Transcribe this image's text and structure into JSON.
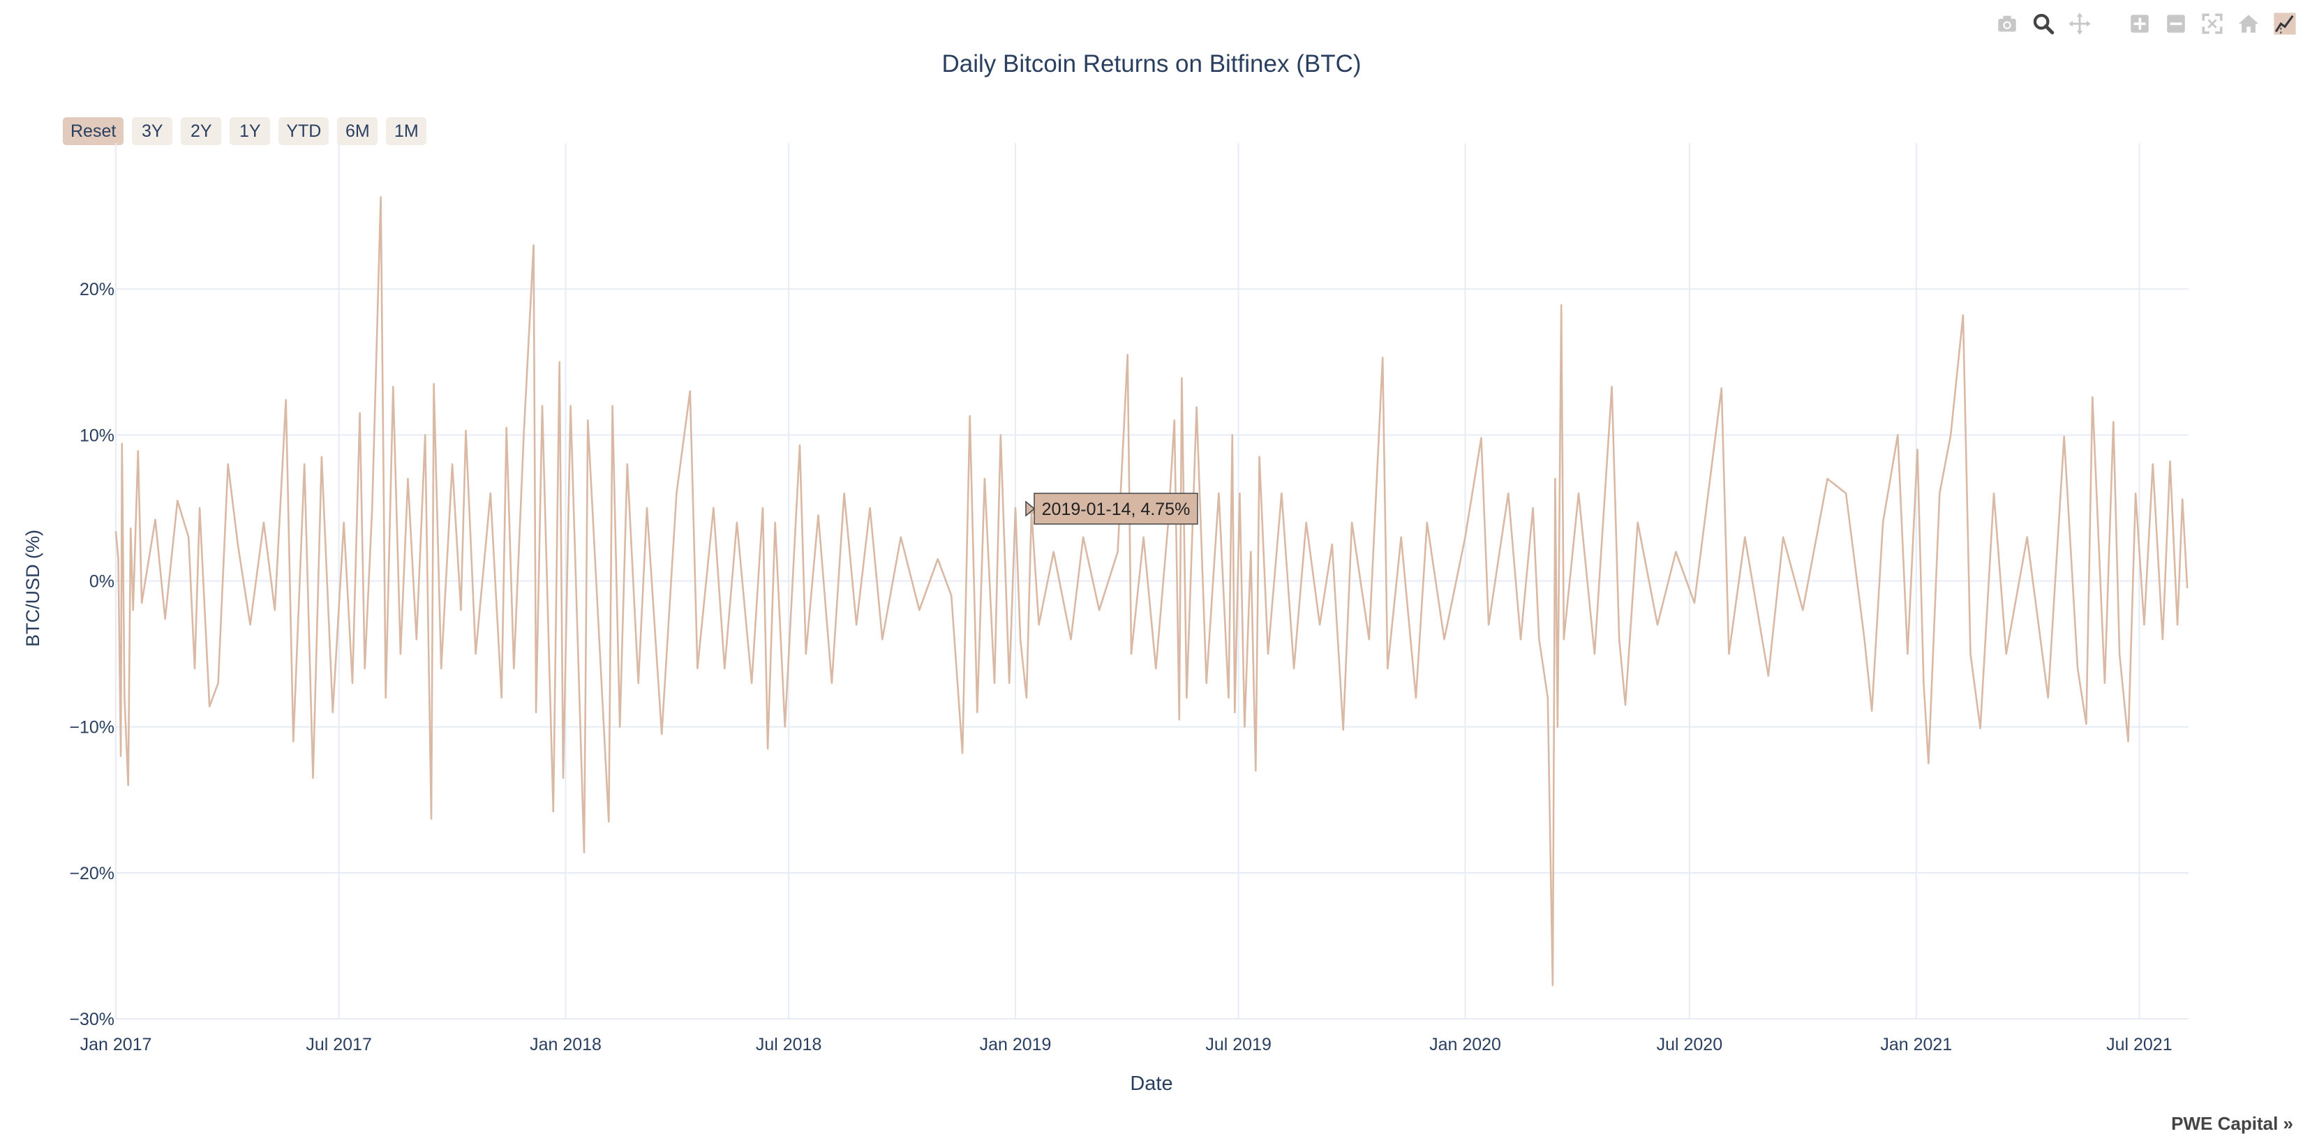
{
  "toolbar": {
    "icons": [
      "camera-icon",
      "zoom-icon",
      "pan-icon",
      "zoom-in-icon",
      "zoom-out-icon",
      "autoscale-icon",
      "reset-axes-icon",
      "spikelines-icon"
    ]
  },
  "range_selector": {
    "buttons": [
      "Reset",
      "3Y",
      "2Y",
      "1Y",
      "YTD",
      "6M",
      "1M"
    ],
    "active": "Reset"
  },
  "tooltip": {
    "text": "2019-01-14, 4.75%",
    "x": "2019-01-14",
    "y": 4.75
  },
  "branding": {
    "label": "PWE Capital »"
  },
  "colors": {
    "line": "#d9b8a4",
    "grid": "#e5ecf6",
    "active_button": "#e2cbbd",
    "button": "#f3ede8",
    "tooltip": "#d6b7a3"
  },
  "chart_data": {
    "type": "line",
    "title": "Daily Bitcoin Returns on Bitfinex (BTC)",
    "xlabel": "Date",
    "ylabel": "BTC/USD (%)",
    "x_range": [
      "2017-01-01",
      "2021-08-10"
    ],
    "ylim": [
      -30,
      30
    ],
    "grid": true,
    "x_ticks": [
      {
        "date": "2017-01-01",
        "label": "Jan 2017"
      },
      {
        "date": "2017-07-01",
        "label": "Jul 2017"
      },
      {
        "date": "2018-01-01",
        "label": "Jan 2018"
      },
      {
        "date": "2018-07-01",
        "label": "Jul 2018"
      },
      {
        "date": "2019-01-01",
        "label": "Jan 2019"
      },
      {
        "date": "2019-07-01",
        "label": "Jul 2019"
      },
      {
        "date": "2020-01-01",
        "label": "Jan 2020"
      },
      {
        "date": "2020-07-01",
        "label": "Jul 2020"
      },
      {
        "date": "2021-01-01",
        "label": "Jan 2021"
      },
      {
        "date": "2021-07-01",
        "label": "Jul 2021"
      }
    ],
    "y_ticks": [
      {
        "value": 20,
        "label": "20%"
      },
      {
        "value": 10,
        "label": "10%"
      },
      {
        "value": 0,
        "label": "0%"
      },
      {
        "value": -10,
        "label": "−10%"
      },
      {
        "value": -20,
        "label": "−20%"
      },
      {
        "value": -30,
        "label": "−30%"
      }
    ],
    "series": [
      {
        "values": [
          [
            "2017-01-01",
            3.4
          ],
          [
            "2017-01-03",
            1.5
          ],
          [
            "2017-01-05",
            -12.0
          ],
          [
            "2017-01-06",
            9.4
          ],
          [
            "2017-01-08",
            -8.0
          ],
          [
            "2017-01-11",
            -14.0
          ],
          [
            "2017-01-13",
            3.6
          ],
          [
            "2017-01-15",
            -2.0
          ],
          [
            "2017-01-19",
            8.9
          ],
          [
            "2017-01-22",
            -1.5
          ],
          [
            "2017-02-02",
            4.2
          ],
          [
            "2017-02-10",
            -2.6
          ],
          [
            "2017-02-20",
            5.5
          ],
          [
            "2017-03-01",
            3.0
          ],
          [
            "2017-03-06",
            -6.0
          ],
          [
            "2017-03-10",
            5.0
          ],
          [
            "2017-03-18",
            -8.6
          ],
          [
            "2017-03-25",
            -7.0
          ],
          [
            "2017-04-02",
            8.0
          ],
          [
            "2017-04-10",
            2.5
          ],
          [
            "2017-04-20",
            -3.0
          ],
          [
            "2017-05-01",
            4.0
          ],
          [
            "2017-05-10",
            -2.0
          ],
          [
            "2017-05-19",
            12.4
          ],
          [
            "2017-05-25",
            -11.0
          ],
          [
            "2017-06-03",
            8.0
          ],
          [
            "2017-06-10",
            -13.5
          ],
          [
            "2017-06-17",
            8.5
          ],
          [
            "2017-06-26",
            -9.0
          ],
          [
            "2017-07-05",
            4.0
          ],
          [
            "2017-07-12",
            -7.0
          ],
          [
            "2017-07-18",
            11.5
          ],
          [
            "2017-07-22",
            -6.0
          ],
          [
            "2017-07-28",
            5.0
          ],
          [
            "2017-08-04",
            26.3
          ],
          [
            "2017-08-08",
            -8.0
          ],
          [
            "2017-08-14",
            13.3
          ],
          [
            "2017-08-20",
            -5.0
          ],
          [
            "2017-08-26",
            7.0
          ],
          [
            "2017-09-02",
            -4.0
          ],
          [
            "2017-09-09",
            10.0
          ],
          [
            "2017-09-14",
            -16.3
          ],
          [
            "2017-09-16",
            13.5
          ],
          [
            "2017-09-22",
            -6.0
          ],
          [
            "2017-10-01",
            8.0
          ],
          [
            "2017-10-08",
            -2.0
          ],
          [
            "2017-10-12",
            10.3
          ],
          [
            "2017-10-20",
            -5.0
          ],
          [
            "2017-11-01",
            6.0
          ],
          [
            "2017-11-10",
            -8.0
          ],
          [
            "2017-11-14",
            10.5
          ],
          [
            "2017-11-20",
            -6.0
          ],
          [
            "2017-11-28",
            10.0
          ],
          [
            "2017-12-06",
            23.0
          ],
          [
            "2017-12-08",
            -9.0
          ],
          [
            "2017-12-13",
            12.0
          ],
          [
            "2017-12-22",
            -15.8
          ],
          [
            "2017-12-27",
            15.0
          ],
          [
            "2017-12-30",
            -13.5
          ],
          [
            "2018-01-05",
            12.0
          ],
          [
            "2018-01-16",
            -18.6
          ],
          [
            "2018-01-19",
            11.0
          ],
          [
            "2018-02-05",
            -16.5
          ],
          [
            "2018-02-08",
            12.0
          ],
          [
            "2018-02-14",
            -10.0
          ],
          [
            "2018-02-20",
            8.0
          ],
          [
            "2018-03-01",
            -7.0
          ],
          [
            "2018-03-08",
            5.0
          ],
          [
            "2018-03-20",
            -10.5
          ],
          [
            "2018-04-01",
            6.0
          ],
          [
            "2018-04-12",
            13.0
          ],
          [
            "2018-04-18",
            -6.0
          ],
          [
            "2018-05-01",
            5.0
          ],
          [
            "2018-05-10",
            -6.0
          ],
          [
            "2018-05-20",
            4.0
          ],
          [
            "2018-06-01",
            -7.0
          ],
          [
            "2018-06-10",
            5.0
          ],
          [
            "2018-06-14",
            -11.5
          ],
          [
            "2018-06-20",
            4.0
          ],
          [
            "2018-06-28",
            -10.0
          ],
          [
            "2018-07-10",
            9.3
          ],
          [
            "2018-07-15",
            -5.0
          ],
          [
            "2018-07-25",
            4.5
          ],
          [
            "2018-08-05",
            -7.0
          ],
          [
            "2018-08-15",
            6.0
          ],
          [
            "2018-08-25",
            -3.0
          ],
          [
            "2018-09-05",
            5.0
          ],
          [
            "2018-09-15",
            -4.0
          ],
          [
            "2018-09-30",
            3.0
          ],
          [
            "2018-10-15",
            -2.0
          ],
          [
            "2018-10-30",
            1.5
          ],
          [
            "2018-11-10",
            -1.0
          ],
          [
            "2018-11-19",
            -11.8
          ],
          [
            "2018-11-25",
            11.3
          ],
          [
            "2018-12-01",
            -9.0
          ],
          [
            "2018-12-07",
            7.0
          ],
          [
            "2018-12-15",
            -7.0
          ],
          [
            "2018-12-20",
            10.0
          ],
          [
            "2018-12-27",
            -7.0
          ],
          [
            "2019-01-01",
            5.0
          ],
          [
            "2019-01-05",
            -4.0
          ],
          [
            "2019-01-10",
            -8.0
          ],
          [
            "2019-01-14",
            4.75
          ],
          [
            "2019-01-20",
            -3.0
          ],
          [
            "2019-02-01",
            2.0
          ],
          [
            "2019-02-15",
            -4.0
          ],
          [
            "2019-02-25",
            3.0
          ],
          [
            "2019-03-10",
            -2.0
          ],
          [
            "2019-03-25",
            2.0
          ],
          [
            "2019-04-02",
            15.5
          ],
          [
            "2019-04-05",
            -5.0
          ],
          [
            "2019-04-15",
            3.0
          ],
          [
            "2019-04-25",
            -6.0
          ],
          [
            "2019-05-05",
            4.0
          ],
          [
            "2019-05-10",
            11.0
          ],
          [
            "2019-05-14",
            -9.5
          ],
          [
            "2019-05-16",
            13.9
          ],
          [
            "2019-05-20",
            -8.0
          ],
          [
            "2019-05-28",
            11.9
          ],
          [
            "2019-06-05",
            -7.0
          ],
          [
            "2019-06-15",
            6.0
          ],
          [
            "2019-06-23",
            -8.0
          ],
          [
            "2019-06-26",
            10.0
          ],
          [
            "2019-06-28",
            -9.0
          ],
          [
            "2019-07-02",
            6.0
          ],
          [
            "2019-07-06",
            -10.0
          ],
          [
            "2019-07-11",
            2.0
          ],
          [
            "2019-07-15",
            -13.0
          ],
          [
            "2019-07-18",
            8.5
          ],
          [
            "2019-07-25",
            -5.0
          ],
          [
            "2019-08-05",
            6.0
          ],
          [
            "2019-08-15",
            -6.0
          ],
          [
            "2019-08-25",
            4.0
          ],
          [
            "2019-09-05",
            -3.0
          ],
          [
            "2019-09-15",
            2.5
          ],
          [
            "2019-09-24",
            -10.2
          ],
          [
            "2019-10-01",
            4.0
          ],
          [
            "2019-10-15",
            -4.0
          ],
          [
            "2019-10-26",
            15.3
          ],
          [
            "2019-10-30",
            -6.0
          ],
          [
            "2019-11-10",
            3.0
          ],
          [
            "2019-11-22",
            -8.0
          ],
          [
            "2019-12-01",
            4.0
          ],
          [
            "2019-12-15",
            -4.0
          ],
          [
            "2020-01-01",
            3.0
          ],
          [
            "2020-01-14",
            9.8
          ],
          [
            "2020-01-20",
            -3.0
          ],
          [
            "2020-02-05",
            6.0
          ],
          [
            "2020-02-15",
            -4.0
          ],
          [
            "2020-02-25",
            5.0
          ],
          [
            "2020-03-01",
            -4.0
          ],
          [
            "2020-03-08",
            -8.0
          ],
          [
            "2020-03-12",
            -27.7
          ],
          [
            "2020-03-14",
            7.0
          ],
          [
            "2020-03-16",
            -10.0
          ],
          [
            "2020-03-19",
            18.9
          ],
          [
            "2020-03-21",
            -4.0
          ],
          [
            "2020-04-02",
            6.0
          ],
          [
            "2020-04-15",
            -5.0
          ],
          [
            "2020-04-29",
            13.3
          ],
          [
            "2020-05-05",
            -4.0
          ],
          [
            "2020-05-10",
            -8.5
          ],
          [
            "2020-05-20",
            4.0
          ],
          [
            "2020-06-05",
            -3.0
          ],
          [
            "2020-06-20",
            2.0
          ],
          [
            "2020-07-05",
            -1.5
          ],
          [
            "2020-07-27",
            13.2
          ],
          [
            "2020-08-02",
            -5.0
          ],
          [
            "2020-08-15",
            3.0
          ],
          [
            "2020-09-03",
            -6.5
          ],
          [
            "2020-09-15",
            3.0
          ],
          [
            "2020-10-01",
            -2.0
          ],
          [
            "2020-10-21",
            7.0
          ],
          [
            "2020-11-05",
            6.0
          ],
          [
            "2020-11-20",
            -4.0
          ],
          [
            "2020-11-26",
            -8.9
          ],
          [
            "2020-12-05",
            4.0
          ],
          [
            "2020-12-17",
            10.0
          ],
          [
            "2020-12-25",
            -5.0
          ],
          [
            "2021-01-02",
            9.0
          ],
          [
            "2021-01-07",
            -7.0
          ],
          [
            "2021-01-11",
            -12.5
          ],
          [
            "2021-01-20",
            6.0
          ],
          [
            "2021-01-29",
            10.0
          ],
          [
            "2021-02-08",
            18.2
          ],
          [
            "2021-02-14",
            -5.0
          ],
          [
            "2021-02-22",
            -10.1
          ],
          [
            "2021-03-05",
            6.0
          ],
          [
            "2021-03-15",
            -5.0
          ],
          [
            "2021-04-01",
            3.0
          ],
          [
            "2021-04-18",
            -8.0
          ],
          [
            "2021-05-01",
            9.9
          ],
          [
            "2021-05-12",
            -6.0
          ],
          [
            "2021-05-19",
            -9.8
          ],
          [
            "2021-05-24",
            12.6
          ],
          [
            "2021-06-03",
            -7.0
          ],
          [
            "2021-06-10",
            10.9
          ],
          [
            "2021-06-15",
            -5.0
          ],
          [
            "2021-06-22",
            -11.0
          ],
          [
            "2021-06-28",
            6.0
          ],
          [
            "2021-07-05",
            -3.0
          ],
          [
            "2021-07-12",
            8.0
          ],
          [
            "2021-07-20",
            -4.0
          ],
          [
            "2021-07-26",
            8.2
          ],
          [
            "2021-08-01",
            -3.0
          ],
          [
            "2021-08-05",
            5.6
          ],
          [
            "2021-08-09",
            -0.5
          ]
        ]
      }
    ]
  }
}
